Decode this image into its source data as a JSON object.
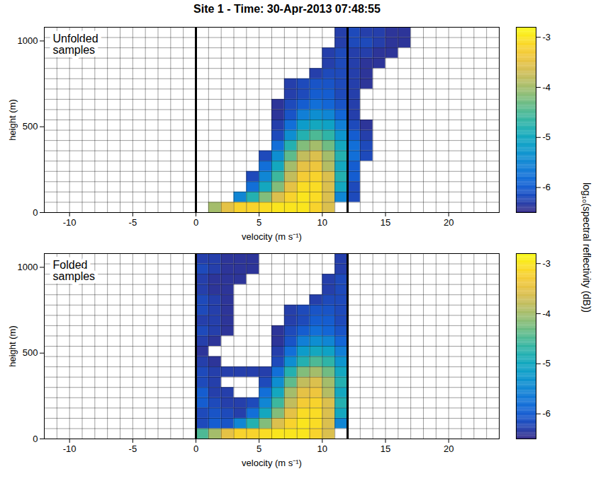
{
  "chart_data": {
    "type": "heatmap",
    "title": "Site 1 - Time: 30-Apr-2013 07:48:55",
    "xlabel": "velocity (m s⁻¹)",
    "ylabel": "height (m)",
    "xlim": [
      -12,
      24
    ],
    "xticks": [
      -10,
      -5,
      0,
      5,
      10,
      15,
      20
    ],
    "ylim": [
      0,
      1080
    ],
    "yticks": [
      0,
      500,
      1000
    ],
    "colorbar": {
      "label": "log₁₀(spectral reflectivity (dB))",
      "lim": [
        -6.5,
        -2.8
      ],
      "ticks": [
        -6,
        -5,
        -4,
        -3
      ]
    },
    "nyquist_lines": [
      0,
      12
    ],
    "velocity_bin": 1,
    "height_bin": 60,
    "panels": [
      {
        "label": "Unfolded samples",
        "rows": [
          {
            "height": 0,
            "v_start": 1,
            "values": [
              -4.0,
              -3.5,
              -3.2,
              -3.2,
              -3.1,
              -3.0,
              -3.0,
              -3.0,
              -3.2,
              -3.6
            ]
          },
          {
            "height": 60,
            "v_start": 3,
            "values": [
              -5.5,
              -4.8,
              -4.2,
              -3.6,
              -3.2,
              -3.0,
              -3.1,
              -3.6,
              -5.5,
              -6.2
            ]
          },
          {
            "height": 120,
            "v_start": 4,
            "values": [
              -5.8,
              -5.0,
              -4.2,
              -3.5,
              -3.1,
              -3.1,
              -3.6,
              -5.0,
              -6.2
            ]
          },
          {
            "height": 180,
            "v_start": 4,
            "values": [
              -6.2,
              -5.5,
              -4.6,
              -3.8,
              -3.3,
              -3.2,
              -3.6,
              -4.8,
              -6.0
            ]
          },
          {
            "height": 240,
            "v_start": 5,
            "values": [
              -5.8,
              -5.0,
              -4.0,
              -3.5,
              -3.4,
              -3.9,
              -5.0,
              -6.0
            ]
          },
          {
            "height": 300,
            "v_start": 5,
            "values": [
              -6.2,
              -5.4,
              -4.4,
              -3.8,
              -3.6,
              -4.0,
              -4.8,
              -5.8,
              -6.2
            ]
          },
          {
            "height": 360,
            "v_start": 6,
            "values": [
              -5.8,
              -4.8,
              -4.2,
              -4.0,
              -4.3,
              -5.0,
              -5.8,
              -6.2
            ]
          },
          {
            "height": 420,
            "v_start": 6,
            "values": [
              -6.2,
              -5.4,
              -4.8,
              -4.5,
              -4.7,
              -5.3,
              -6.0,
              -6.3
            ]
          },
          {
            "height": 480,
            "v_start": 6,
            "values": [
              -6.3,
              -5.8,
              -5.2,
              -5.0,
              -5.1,
              -5.6,
              -6.2,
              -6.4
            ]
          },
          {
            "height": 540,
            "v_start": 6,
            "values": [
              -6.4,
              -6.1,
              -5.6,
              -5.4,
              -5.5,
              -5.9,
              -6.3
            ]
          },
          {
            "height": 600,
            "v_start": 6,
            "values": [
              -6.4,
              -6.2,
              -6.0,
              -5.8,
              -5.9,
              -6.1,
              -6.3
            ]
          },
          {
            "height": 660,
            "v_start": 7,
            "values": [
              -6.3,
              -6.2,
              -6.0,
              -6.0,
              -6.2,
              -6.3
            ]
          },
          {
            "height": 720,
            "v_start": 7,
            "values": [
              -6.3,
              -6.2,
              -6.1,
              -6.1,
              -6.2,
              -6.3,
              -6.4
            ]
          },
          {
            "height": 780,
            "v_start": 9,
            "values": [
              -6.3,
              -6.2,
              -6.2,
              -6.3,
              -6.4
            ]
          },
          {
            "height": 840,
            "v_start": 10,
            "values": [
              -6.3,
              -6.2,
              -6.3,
              -6.4,
              -6.4
            ]
          },
          {
            "height": 900,
            "v_start": 10,
            "values": [
              -6.3,
              -6.2,
              -6.3,
              -6.3,
              -6.4,
              -6.4
            ]
          },
          {
            "height": 960,
            "v_start": 11,
            "values": [
              -6.3,
              -6.2,
              -6.2,
              -6.3,
              -6.4,
              -6.4
            ]
          },
          {
            "height": 1020,
            "v_start": 11,
            "values": [
              -6.3,
              -6.2,
              -6.3,
              -6.3,
              -6.4,
              -6.4
            ]
          }
        ]
      },
      {
        "label": "Folded samples",
        "rows": [
          {
            "height": 0,
            "v_start": 0,
            "values": [
              -4.5,
              -4.0,
              -3.5,
              -3.2,
              -3.2,
              -3.1,
              -3.0,
              -3.0,
              -3.0,
              -3.2,
              -3.6
            ]
          },
          {
            "height": 60,
            "v_start": 0,
            "values": [
              -6.2,
              -6.0,
              -6.1,
              -5.5,
              -4.8,
              -4.2,
              -3.6,
              -3.2,
              -3.0,
              -3.1,
              -3.6,
              -5.5
            ]
          },
          {
            "height": 120,
            "v_start": 0,
            "values": [
              -6.2,
              -6.1,
              -6.2,
              -6.3,
              -5.8,
              -5.0,
              -4.2,
              -3.5,
              -3.1,
              -3.1,
              -3.6,
              -5.0
            ]
          },
          {
            "height": 180,
            "v_start": 0,
            "values": [
              -6.0,
              -6.2,
              -6.3,
              -6.3,
              -6.2,
              -5.5,
              -4.6,
              -3.8,
              -3.3,
              -3.2,
              -3.6,
              -4.8
            ]
          },
          {
            "height": 240,
            "v_start": 0,
            "values": [
              -6.0,
              -6.3,
              -6.3,
              null,
              null,
              -5.8,
              -5.0,
              -4.0,
              -3.5,
              -3.4,
              -3.9,
              -5.0
            ]
          },
          {
            "height": 300,
            "v_start": 0,
            "values": [
              -6.2,
              -6.3,
              null,
              null,
              null,
              -6.2,
              -5.4,
              -4.4,
              -3.8,
              -3.6,
              -4.0,
              -4.8
            ]
          },
          {
            "height": 360,
            "v_start": 0,
            "values": [
              -6.2,
              -6.3,
              -6.3,
              -6.3,
              -6.3,
              -6.3,
              -5.8,
              -4.8,
              -4.2,
              -4.0,
              -4.3,
              -5.0
            ]
          },
          {
            "height": 420,
            "v_start": 0,
            "values": [
              -6.3,
              -6.4,
              null,
              null,
              null,
              null,
              -6.2,
              -5.4,
              -4.8,
              -4.5,
              -4.7,
              -5.3
            ]
          },
          {
            "height": 480,
            "v_start": 0,
            "values": [
              -6.4,
              null,
              null,
              null,
              null,
              null,
              -6.3,
              -5.8,
              -5.2,
              -5.0,
              -5.1,
              -5.6
            ]
          },
          {
            "height": 540,
            "v_start": 0,
            "values": [
              -6.3,
              -6.4,
              null,
              null,
              null,
              null,
              -6.4,
              -6.1,
              -5.6,
              -5.4,
              -5.5,
              -5.9
            ]
          },
          {
            "height": 600,
            "v_start": 0,
            "values": [
              -6.2,
              -6.3,
              -6.4,
              null,
              null,
              null,
              -6.4,
              -6.2,
              -6.0,
              -5.8,
              -5.9,
              -6.1
            ]
          },
          {
            "height": 660,
            "v_start": 0,
            "values": [
              -6.3,
              -6.3,
              -6.4,
              null,
              null,
              null,
              null,
              -6.3,
              -6.2,
              -6.0,
              -6.0,
              -6.2
            ]
          },
          {
            "height": 720,
            "v_start": 0,
            "values": [
              -6.2,
              -6.3,
              -6.4,
              null,
              null,
              null,
              null,
              -6.3,
              -6.2,
              -6.1,
              -6.1,
              -6.2
            ]
          },
          {
            "height": 780,
            "v_start": 0,
            "values": [
              -6.2,
              -6.3,
              -6.4,
              null,
              null,
              null,
              null,
              null,
              null,
              -6.3,
              -6.2,
              -6.2
            ]
          },
          {
            "height": 840,
            "v_start": 0,
            "values": [
              -6.3,
              -6.4,
              -6.4,
              null,
              null,
              null,
              null,
              null,
              null,
              null,
              -6.3,
              -6.2
            ]
          },
          {
            "height": 900,
            "v_start": 0,
            "values": [
              -6.3,
              -6.4,
              -6.4,
              -6.4,
              null,
              null,
              null,
              null,
              null,
              null,
              -6.3,
              -6.2
            ]
          },
          {
            "height": 960,
            "v_start": 0,
            "values": [
              -6.2,
              -6.3,
              -6.4,
              -6.4,
              -6.4,
              null,
              null,
              null,
              null,
              null,
              null,
              -6.3
            ]
          },
          {
            "height": 1020,
            "v_start": 0,
            "values": [
              -6.3,
              -6.3,
              -6.4,
              -6.4,
              -6.4,
              null,
              null,
              null,
              null,
              null,
              null,
              -6.3
            ]
          }
        ]
      }
    ]
  }
}
